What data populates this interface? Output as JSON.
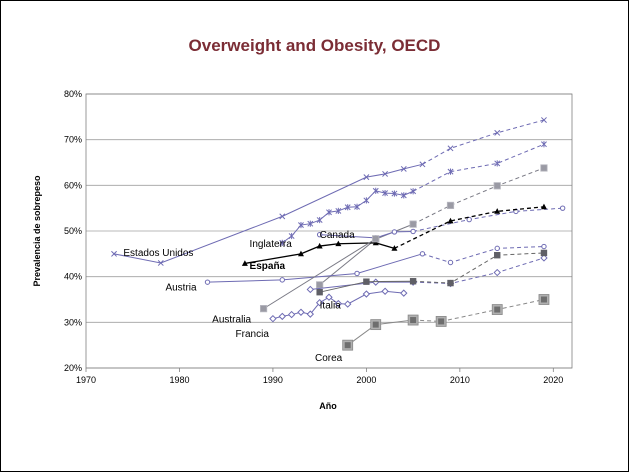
{
  "chart_data": {
    "type": "line",
    "title": "Overweight and Obesity, OECD",
    "xlabel": "Año",
    "ylabel": "Prevalencia de sobrepeso",
    "xlim": [
      1970,
      2022
    ],
    "ylim": [
      20,
      80
    ],
    "xticks": [
      "1970",
      "1980",
      "1990",
      "2000",
      "2010",
      "2020"
    ],
    "yticks": [
      "20%",
      "30%",
      "40%",
      "50%",
      "60%",
      "70%",
      "80%"
    ],
    "grid": "horizontal",
    "legend": "inline labels",
    "series": [
      {
        "name": "Estados Unidos",
        "color": "#6e6bb3",
        "marker": "x",
        "label_at": [
          1974,
          44.5
        ],
        "solid": [
          [
            1973,
            45
          ],
          [
            1978,
            43
          ],
          [
            1991,
            53.2
          ],
          [
            2000,
            61.8
          ],
          [
            2002,
            62.5
          ],
          [
            2004,
            63.6
          ],
          [
            2006,
            64.6
          ]
        ],
        "dashed": [
          [
            2006,
            64.6
          ],
          [
            2009,
            68.1
          ],
          [
            2014,
            71.5
          ],
          [
            2019,
            74.3
          ]
        ]
      },
      {
        "name": "Inglaterra",
        "color": "#6e6bb3",
        "marker": "star",
        "label_at": [
          1987.5,
          46.5
        ],
        "solid": [
          [
            1991,
            47.4
          ],
          [
            1992,
            48.9
          ],
          [
            1993,
            51.3
          ],
          [
            1994,
            51.6
          ],
          [
            1995,
            52.4
          ],
          [
            1996,
            54.1
          ],
          [
            1997,
            54.4
          ],
          [
            1998,
            55.2
          ],
          [
            1999,
            55.3
          ],
          [
            2000,
            56.7
          ],
          [
            2001,
            58.8
          ],
          [
            2002,
            58.3
          ],
          [
            2003,
            58.2
          ],
          [
            2004,
            57.8
          ],
          [
            2005,
            58.7
          ]
        ],
        "dashed": [
          [
            2005,
            58.7
          ],
          [
            2009,
            63
          ],
          [
            2014,
            64.8
          ],
          [
            2019,
            69
          ]
        ]
      },
      {
        "name": "Canada",
        "color": "#7a7a85",
        "marker": "square-light",
        "label_at": [
          1995,
          48.5
        ],
        "solid": [
          [
            1995,
            38.2
          ],
          [
            2001,
            48.2
          ],
          [
            2005,
            51.5
          ]
        ],
        "dashed": [
          [
            2005,
            51.5
          ],
          [
            2009,
            55.6
          ],
          [
            2014,
            59.9
          ],
          [
            2019,
            63.8
          ]
        ]
      },
      {
        "name": "",
        "color": "#6e6bb3",
        "marker": "circle",
        "solid": [
          [
            1995,
            49.2
          ],
          [
            2001,
            48.5
          ],
          [
            2003,
            49.8
          ],
          [
            2005,
            49.9
          ]
        ],
        "dashed": [
          [
            2005,
            49.9
          ],
          [
            2011,
            52.5
          ],
          [
            2016,
            54.3
          ],
          [
            2021,
            55
          ]
        ]
      },
      {
        "name": "España",
        "color": "#000000",
        "marker": "triangle",
        "bold_label": true,
        "label_at": [
          1987.5,
          41.7
        ],
        "solid": [
          [
            1987,
            42.9
          ],
          [
            1993,
            45
          ],
          [
            1995,
            46.7
          ],
          [
            1997,
            47.2
          ],
          [
            2001,
            47.4
          ],
          [
            2003,
            46.2
          ]
        ],
        "dashed": [
          [
            2003,
            46.2
          ],
          [
            2009,
            52.2
          ],
          [
            2014,
            54.3
          ],
          [
            2019,
            55.3
          ]
        ]
      },
      {
        "name": "Austria",
        "color": "#6e6bb3",
        "marker": "circle",
        "label_at": [
          1978.5,
          37
        ],
        "solid": [
          [
            1983,
            38.8
          ],
          [
            1991,
            39.3
          ],
          [
            1999,
            40.7
          ],
          [
            2006,
            45
          ]
        ],
        "dashed": [
          [
            2006,
            45
          ],
          [
            2009,
            43.1
          ],
          [
            2014,
            46.2
          ],
          [
            2019,
            46.6
          ]
        ]
      },
      {
        "name": "Italia",
        "color": "#6e6bb3",
        "marker": "diamond",
        "label_at": [
          1995,
          33
        ],
        "solid": [
          [
            1994,
            37.2
          ],
          [
            2001,
            38.8
          ],
          [
            2005,
            38.8
          ]
        ],
        "dashed": [
          [
            2005,
            38.8
          ],
          [
            2009,
            38.5
          ],
          [
            2014,
            40.9
          ],
          [
            2019,
            44.1
          ]
        ]
      },
      {
        "name": "Australia",
        "color": "#7a7a85",
        "marker": "square-light",
        "label_at": [
          1983.5,
          30
        ],
        "solid": [
          [
            1989,
            33
          ],
          [
            2001,
            48.3
          ]
        ],
        "dashed": []
      },
      {
        "name": "",
        "color": "#666666",
        "marker": "square-dark",
        "solid": [
          [
            1995,
            36.6
          ],
          [
            2000,
            38.9
          ],
          [
            2005,
            39
          ]
        ],
        "dashed": [
          [
            2005,
            39
          ],
          [
            2009,
            38.6
          ],
          [
            2014,
            44.7
          ],
          [
            2019,
            45.2
          ]
        ]
      },
      {
        "name": "Francia",
        "color": "#6e6bb3",
        "marker": "diamond",
        "label_at": [
          1986,
          26.8
        ],
        "solid": [
          [
            1990,
            30.8
          ],
          [
            1991,
            31.3
          ],
          [
            1992,
            31.7
          ],
          [
            1993,
            32.2
          ],
          [
            1994,
            31.8
          ],
          [
            1995,
            34.3
          ],
          [
            1996,
            35.5
          ],
          [
            1997,
            34.1
          ],
          [
            1998,
            34
          ],
          [
            2000,
            36.2
          ],
          [
            2002,
            36.8
          ],
          [
            2004,
            36.4
          ]
        ],
        "dashed": []
      },
      {
        "name": "Corea",
        "color": "#888888",
        "marker": "square-big",
        "label_at": [
          1994.5,
          21.5
        ],
        "solid": [
          [
            1998,
            25
          ],
          [
            2001,
            29.5
          ],
          [
            2005,
            30.5
          ]
        ],
        "dashed": [
          [
            2005,
            30.5
          ],
          [
            2008,
            30.2
          ],
          [
            2014,
            32.8
          ],
          [
            2019,
            35
          ]
        ]
      }
    ]
  }
}
